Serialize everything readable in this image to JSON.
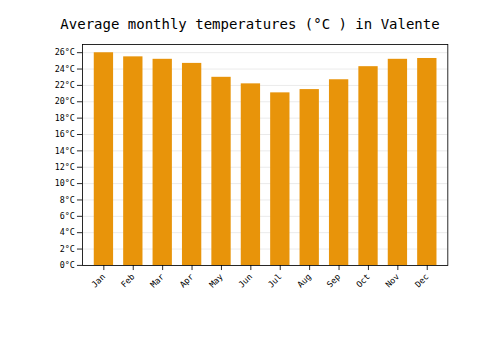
{
  "chart_data": {
    "type": "bar",
    "title": "Average monthly temperatures (°C ) in Valente",
    "categories": [
      "Jan",
      "Feb",
      "Mar",
      "Apr",
      "May",
      "Jun",
      "Jul",
      "Aug",
      "Sep",
      "Oct",
      "Nov",
      "Dec"
    ],
    "values": [
      26.0,
      25.5,
      25.2,
      24.7,
      23.0,
      22.2,
      21.1,
      21.5,
      22.7,
      24.3,
      25.2,
      25.3
    ],
    "color": "#E8940A",
    "ylim": [
      0,
      27
    ],
    "yticks": [
      {
        "value": 0,
        "label": "0°C"
      },
      {
        "value": 2,
        "label": "2°C"
      },
      {
        "value": 4,
        "label": "4°C"
      },
      {
        "value": 6,
        "label": "6°C"
      },
      {
        "value": 8,
        "label": "8°C"
      },
      {
        "value": 10,
        "label": "10°C"
      },
      {
        "value": 12,
        "label": "12°C"
      },
      {
        "value": 14,
        "label": "14°C"
      },
      {
        "value": 16,
        "label": "16°C"
      },
      {
        "value": 18,
        "label": "18°C"
      },
      {
        "value": 20,
        "label": "20°C"
      },
      {
        "value": 22,
        "label": "22°C"
      },
      {
        "value": 24,
        "label": "24°C"
      },
      {
        "value": 26,
        "label": "26°C"
      }
    ],
    "grid": true
  }
}
